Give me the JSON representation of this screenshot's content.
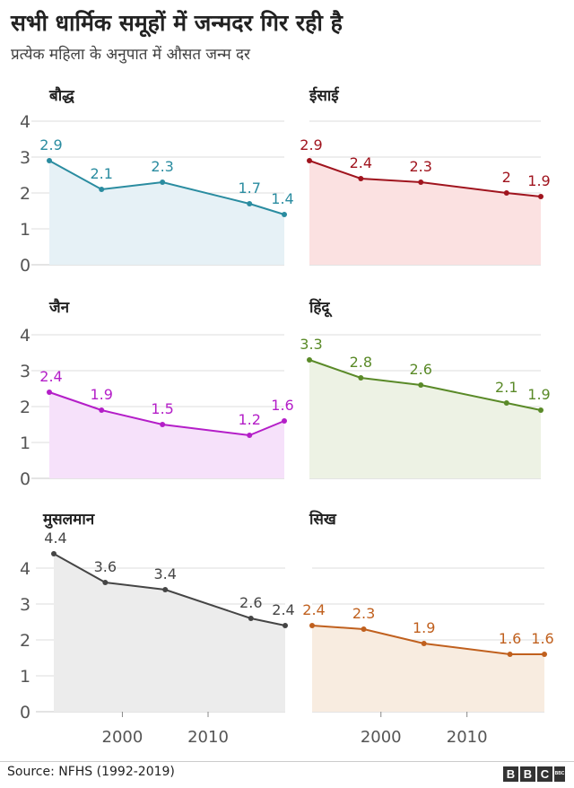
{
  "title": "सभी धार्मिक समूहों में जन्मदर गिर रही है",
  "subtitle": "प्रत्येक महिला के अनुपात में औसत जन्म दर",
  "source": "Source: NFHS (1992-2019)",
  "logo": {
    "letters": [
      "B",
      "B",
      "C"
    ],
    "small": "BBC"
  },
  "chart_data": [
    {
      "type": "line",
      "title": "बौद्ध",
      "color": "#2a8ca0",
      "fill": "#e6f1f6",
      "x": [
        1992,
        1998,
        2005,
        2015,
        2019
      ],
      "values": [
        2.9,
        2.1,
        2.3,
        1.7,
        1.4
      ],
      "labels": [
        "2.9",
        "2.1",
        "2.3",
        "1.7",
        "1.4"
      ],
      "yticks": [
        "0",
        "1",
        "2",
        "3",
        "4"
      ],
      "ylim": [
        0,
        4
      ]
    },
    {
      "type": "line",
      "title": "ईसाई",
      "color": "#a0141e",
      "fill": "#fbe1e1",
      "x": [
        1992,
        1998,
        2005,
        2015,
        2019
      ],
      "values": [
        2.9,
        2.4,
        2.3,
        2.0,
        1.9
      ],
      "labels": [
        "2.9",
        "2.4",
        "2.3",
        "2",
        "1.9"
      ],
      "ylim": [
        0,
        4
      ]
    },
    {
      "type": "line",
      "title": "जैन",
      "color": "#b41ec8",
      "fill": "#f6e1fa",
      "x": [
        1992,
        1998,
        2005,
        2015,
        2019
      ],
      "values": [
        2.4,
        1.9,
        1.5,
        1.2,
        1.6
      ],
      "labels": [
        "2.4",
        "1.9",
        "1.5",
        "1.2",
        "1.6"
      ],
      "yticks": [
        "0",
        "1",
        "2",
        "3",
        "4"
      ],
      "ylim": [
        0,
        4
      ]
    },
    {
      "type": "line",
      "title": "हिंदू",
      "color": "#5a8a28",
      "fill": "#edf2e4",
      "x": [
        1992,
        1998,
        2005,
        2015,
        2019
      ],
      "values": [
        3.3,
        2.8,
        2.6,
        2.1,
        1.9
      ],
      "labels": [
        "3.3",
        "2.8",
        "2.6",
        "2.1",
        "1.9"
      ],
      "ylim": [
        0,
        4
      ]
    },
    {
      "type": "line",
      "title": "मुसलमान",
      "color": "#454545",
      "fill": "#ececec",
      "x": [
        1992,
        1998,
        2005,
        2015,
        2019
      ],
      "values": [
        4.4,
        3.6,
        3.4,
        2.6,
        2.4
      ],
      "labels": [
        "4.4",
        "3.6",
        "3.4",
        "2.6",
        "2.4"
      ],
      "yticks": [
        "0",
        "1",
        "2",
        "3",
        "4"
      ],
      "ylim": [
        0,
        4
      ],
      "xticks": [
        2000,
        2010
      ],
      "xtick_labels": [
        "2000",
        "2010"
      ]
    },
    {
      "type": "line",
      "title": "सिख",
      "color": "#c0601e",
      "fill": "#f8ece0",
      "x": [
        1992,
        1998,
        2005,
        2015,
        2019
      ],
      "values": [
        2.4,
        2.3,
        1.9,
        1.6,
        1.6
      ],
      "labels": [
        "2.4",
        "2.3",
        "1.9",
        "1.6",
        "1.6"
      ],
      "ylim": [
        0,
        4
      ],
      "xticks": [
        2000,
        2010
      ],
      "xtick_labels": [
        "2000",
        "2010"
      ]
    }
  ]
}
